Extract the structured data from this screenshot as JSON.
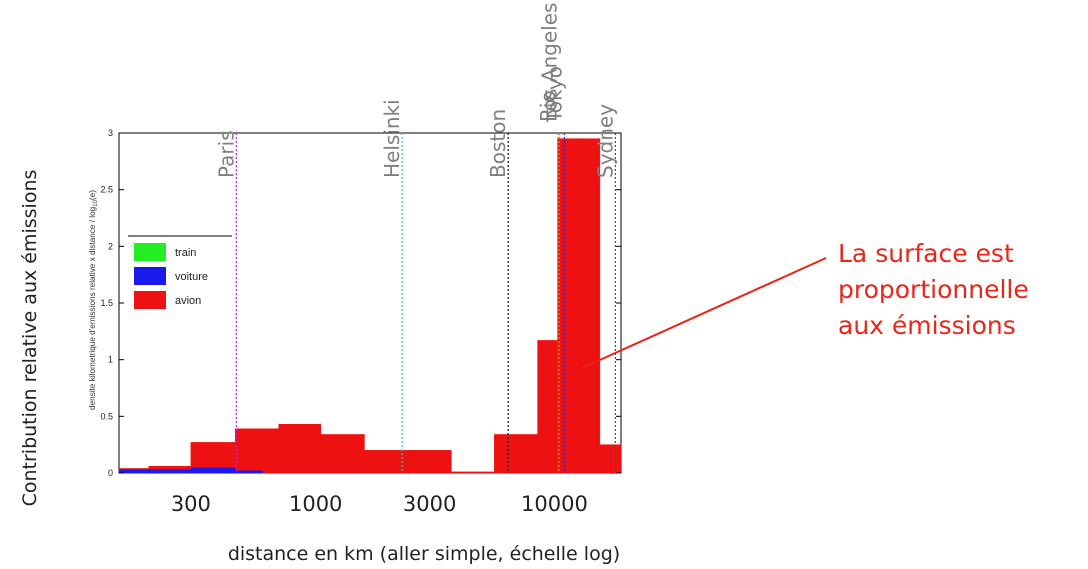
{
  "chart_data": {
    "type": "bar",
    "ylabel_inner": "densite kilometrique d'emissions relative x distance / log",
    "ylabel_inner_sub": "10",
    "ylabel_inner_end": "(e)",
    "ylabel_outer": "Contribution relative aux émissions",
    "xlabel": "distance en km  (aller simple, échelle log)",
    "ylim": [
      0,
      3
    ],
    "yticks": [
      "0",
      "0.5",
      "1",
      "1.5",
      "2",
      "2.5",
      "3"
    ],
    "xscale": "log",
    "xlim": [
      150,
      19000
    ],
    "xticks": [
      {
        "value": 300,
        "label": "300"
      },
      {
        "value": 1000,
        "label": "1000"
      },
      {
        "value": 3000,
        "label": "3000"
      },
      {
        "value": 10000,
        "label": "10000"
      }
    ],
    "legend": {
      "position": "left",
      "entries": [
        {
          "name": "train",
          "color": "#22ee22"
        },
        {
          "name": "voiture",
          "color": "#1a1aee"
        },
        {
          "name": "avion",
          "color": "#ee1111"
        }
      ]
    },
    "series": [
      {
        "name": "avion",
        "color": "#ee1111",
        "bins": [
          {
            "x0": 150,
            "x1": 200,
            "y": 0.04
          },
          {
            "x0": 200,
            "x1": 300,
            "y": 0.06
          },
          {
            "x0": 300,
            "x1": 460,
            "y": 0.27
          },
          {
            "x0": 460,
            "x1": 700,
            "y": 0.39
          },
          {
            "x0": 700,
            "x1": 1050,
            "y": 0.43
          },
          {
            "x0": 1050,
            "x1": 1600,
            "y": 0.34
          },
          {
            "x0": 1600,
            "x1": 2450,
            "y": 0.2
          },
          {
            "x0": 2450,
            "x1": 3700,
            "y": 0.2
          },
          {
            "x0": 3700,
            "x1": 5600,
            "y": 0.01
          },
          {
            "x0": 5600,
            "x1": 8500,
            "y": 0.34
          },
          {
            "x0": 8500,
            "x1": 10300,
            "y": 1.17
          },
          {
            "x0": 10300,
            "x1": 12800,
            "y": 2.95
          },
          {
            "x0": 12800,
            "x1": 15500,
            "y": 2.95
          },
          {
            "x0": 15500,
            "x1": 19000,
            "y": 0.25
          }
        ]
      },
      {
        "name": "voiture",
        "color": "#1a1aee",
        "bins": [
          {
            "x0": 150,
            "x1": 300,
            "y": 0.03
          },
          {
            "x0": 300,
            "x1": 460,
            "y": 0.045
          },
          {
            "x0": 460,
            "x1": 600,
            "y": 0.02
          }
        ]
      },
      {
        "name": "train",
        "color": "#22ee22",
        "bins": []
      }
    ],
    "annotations": [
      {
        "text": "Paris",
        "x": 465,
        "color": "#cc22cc"
      },
      {
        "text": "Helsinki",
        "x": 2300,
        "color": "#33cccc"
      },
      {
        "text": "Boston",
        "x": 6400,
        "color": "#111111"
      },
      {
        "text": "Rio",
        "x": 10350,
        "color": "#aa8800"
      },
      {
        "text": "Los Angeles",
        "x": 10500,
        "color": "#ee6600"
      },
      {
        "text": "Tokyo",
        "x": 11000,
        "color": "#2222ee"
      },
      {
        "text": "Sydney",
        "x": 18000,
        "color": "#117711"
      }
    ]
  },
  "annotation_text": {
    "line1": "La surface est",
    "line2": "proportionnelle",
    "line3": "aux émissions",
    "color": "#e8261a"
  }
}
